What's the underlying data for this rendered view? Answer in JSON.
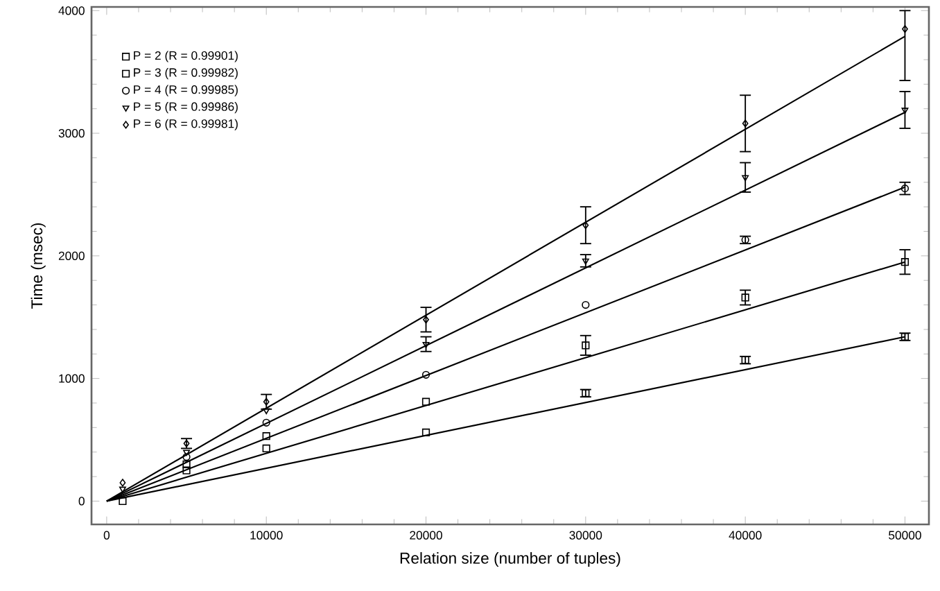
{
  "chart_data": {
    "type": "scatter",
    "xlabel": "Relation size (number of tuples)",
    "ylabel": "Time (msec)",
    "xlim": [
      -950,
      51500
    ],
    "ylim": [
      -190,
      4030
    ],
    "xticks": [
      0,
      10000,
      20000,
      30000,
      40000,
      50000
    ],
    "yticks": [
      0,
      1000,
      2000,
      3000,
      4000
    ],
    "grid": false,
    "legend": "top left",
    "series": [
      {
        "name": "P = 2 (R = 0.99901)",
        "marker": "square",
        "color": "#000000",
        "x": [
          1000,
          5000,
          10000,
          20000,
          30000,
          40000,
          50000
        ],
        "values": [
          0,
          250,
          430,
          560,
          880,
          1150,
          1340
        ],
        "errors": [
          null,
          null,
          null,
          null,
          30,
          30,
          30
        ]
      },
      {
        "name": "P = 3 (R = 0.99982)",
        "marker": "square",
        "color": "#000000",
        "x": [
          5000,
          10000,
          20000,
          30000,
          40000,
          50000
        ],
        "values": [
          300,
          530,
          810,
          1270,
          1660,
          1950
        ],
        "errors": [
          null,
          null,
          null,
          80,
          60,
          100
        ]
      },
      {
        "name": "P = 4 (R = 0.99985)",
        "marker": "circle",
        "color": "#000000",
        "x": [
          5000,
          10000,
          20000,
          30000,
          40000,
          50000
        ],
        "values": [
          360,
          640,
          1030,
          1600,
          2130,
          2550
        ],
        "errors": [
          null,
          null,
          null,
          null,
          30,
          50
        ]
      },
      {
        "name": "P = 5 (R = 0.99986)",
        "marker": "triangle",
        "color": "#000000",
        "x": [
          1000,
          5000,
          10000,
          20000,
          30000,
          40000,
          50000
        ],
        "values": [
          100,
          400,
          740,
          1280,
          1960,
          2640,
          3190
        ],
        "errors": [
          null,
          null,
          null,
          60,
          50,
          120,
          150
        ]
      },
      {
        "name": "P = 6 (R = 0.99981)",
        "marker": "diamond",
        "color": "#000000",
        "x": [
          1000,
          5000,
          10000,
          20000,
          30000,
          40000,
          50000
        ],
        "values": [
          150,
          470,
          810,
          1480,
          2250,
          3080,
          3850
        ],
        "errors": [
          null,
          40,
          60,
          100,
          150,
          230,
          [
            3430,
            4000
          ]
        ]
      },
      {
        "type": "line",
        "color": "#000000",
        "x": [
          0,
          50000
        ],
        "values": [
          0,
          1340
        ]
      },
      {
        "type": "line",
        "color": "#000000",
        "x": [
          0,
          50000
        ],
        "values": [
          0,
          1950
        ]
      },
      {
        "type": "line",
        "color": "#000000",
        "x": [
          0,
          50000
        ],
        "values": [
          0,
          2560
        ]
      },
      {
        "type": "line",
        "color": "#000000",
        "x": [
          0,
          50000
        ],
        "values": [
          0,
          3170
        ]
      },
      {
        "type": "line",
        "color": "#000000",
        "x": [
          0,
          50000
        ],
        "values": [
          0,
          3790
        ]
      }
    ]
  }
}
